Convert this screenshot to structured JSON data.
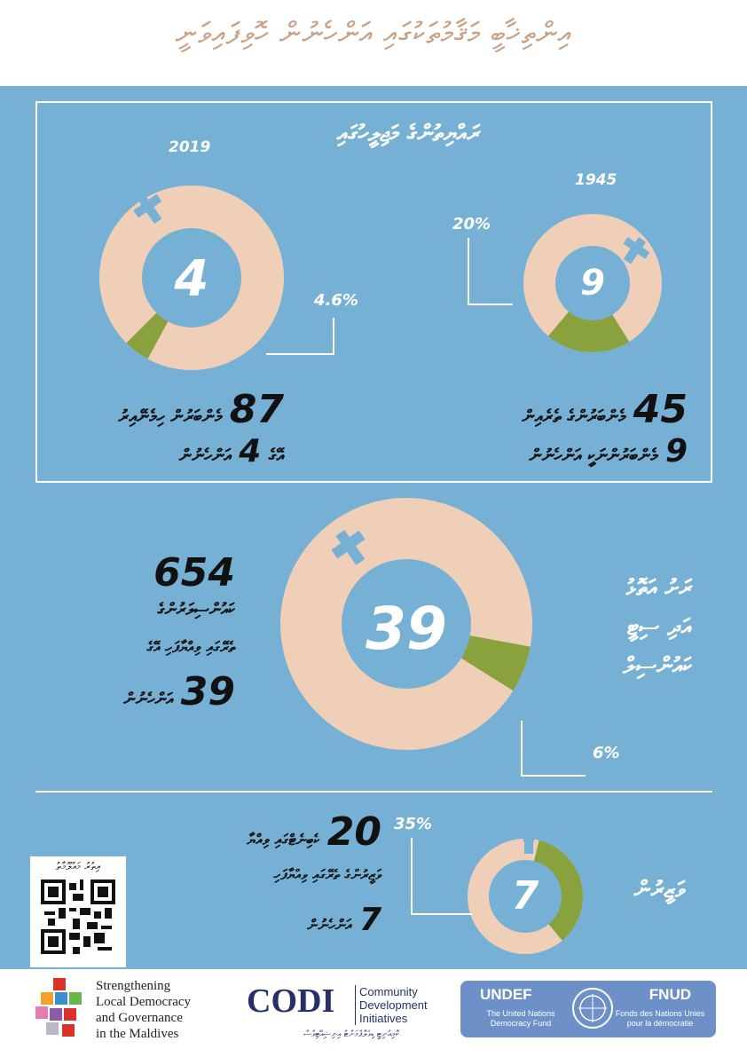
{
  "header": {
    "title": "އިންތިޚާބީ މަޤާމުތަކުގައި އަންހެނުން ހޮވިފައިވަނީ"
  },
  "colors": {
    "background": "#76b0d5",
    "peach": "#efcfb7",
    "green": "#8aa23d",
    "title": "#c9a184"
  },
  "parliament": {
    "heading": "ރައްޔިތުންގެ މަޖިލީހުގައި",
    "year_2019": "2019",
    "year_1945": "1945",
    "pct_2019": "4.6%",
    "pct_1945": "20%",
    "center_2019": "4",
    "center_1945": "9",
    "text_2019_line1_num": "87",
    "text_2019_line1": "މެންބަރުން ހިމެނޭއިރު",
    "text_2019_line2_a": "އޭގެ",
    "text_2019_line2_num": "4",
    "text_2019_line2_b": "އަންހެނުން",
    "text_1945_line1_num": "45",
    "text_1945_line1": "މެންބަރުންގެ ތެރެއިން",
    "text_1945_line2_num": "9",
    "text_1945_line2": "މެންބަރުންނަކީ އަންހެނުން"
  },
  "councils": {
    "heading_line1": "ރަށު އަތޮޅު",
    "heading_line2": "އަދި ސިޓީ",
    "heading_line3": "ކައުންސިލް",
    "pct": "6%",
    "center": "39",
    "text_num_top": "654",
    "text_line1": "ކައުންސިލަރުންގެ",
    "text_line2": "ތެރޭގައި ވިއްޔާފަހި އޭގެ",
    "text_num_bottom": "39",
    "text_line3": "އަންހެނުން"
  },
  "cabinet": {
    "heading": "ވަޒީރުން",
    "pct": "35%",
    "center": "7",
    "text_num": "20",
    "text_line1": "ކެބިނެޓްގައި ވިއްޔާ",
    "text_line2": "ވަޒީރުންގެ ތެރޭގައި ވިއްޔާފަހި",
    "text_num2": "7",
    "text_line3": "އަންހެނުން"
  },
  "footer": {
    "qr_caption": "އިތުރު މައުލޫމާތު",
    "org1_line1": "Strengthening",
    "org1_line2": "Local Democracy",
    "org1_line3": "and Governance",
    "org1_line4": "in the Maldives",
    "codi_logo": "CODI",
    "codi_line1": "Community",
    "codi_line2": "Development",
    "codi_line3": "Initiatives",
    "codi_sub": "ކޮމިއުނިޓީ ޑިވެލޮޕްމަންޓް އިނިޝިއޭޓިވްސް",
    "undef_title": "UNDEF",
    "undef_sub": "The United Nations Democracy Fund",
    "fnud_title": "FNUD",
    "fnud_sub": "Fonds des Nations Unies pour la démocratie"
  },
  "chart_data": [
    {
      "type": "pie",
      "title": "2019",
      "labels": [
        "women",
        "men"
      ],
      "values": [
        4.6,
        95.4
      ],
      "colors": [
        "#8aa23d",
        "#efcfb7"
      ]
    },
    {
      "type": "pie",
      "title": "1945",
      "labels": [
        "women",
        "men"
      ],
      "values": [
        20,
        80
      ],
      "colors": [
        "#8aa23d",
        "#efcfb7"
      ]
    },
    {
      "type": "pie",
      "title": "",
      "labels": [
        "women",
        "men"
      ],
      "values": [
        6,
        94
      ],
      "colors": [
        "#8aa23d",
        "#efcfb7"
      ]
    },
    {
      "type": "pie",
      "title": "",
      "labels": [
        "women",
        "men"
      ],
      "values": [
        35,
        65
      ],
      "colors": [
        "#8aa23d",
        "#efcfb7"
      ]
    }
  ]
}
